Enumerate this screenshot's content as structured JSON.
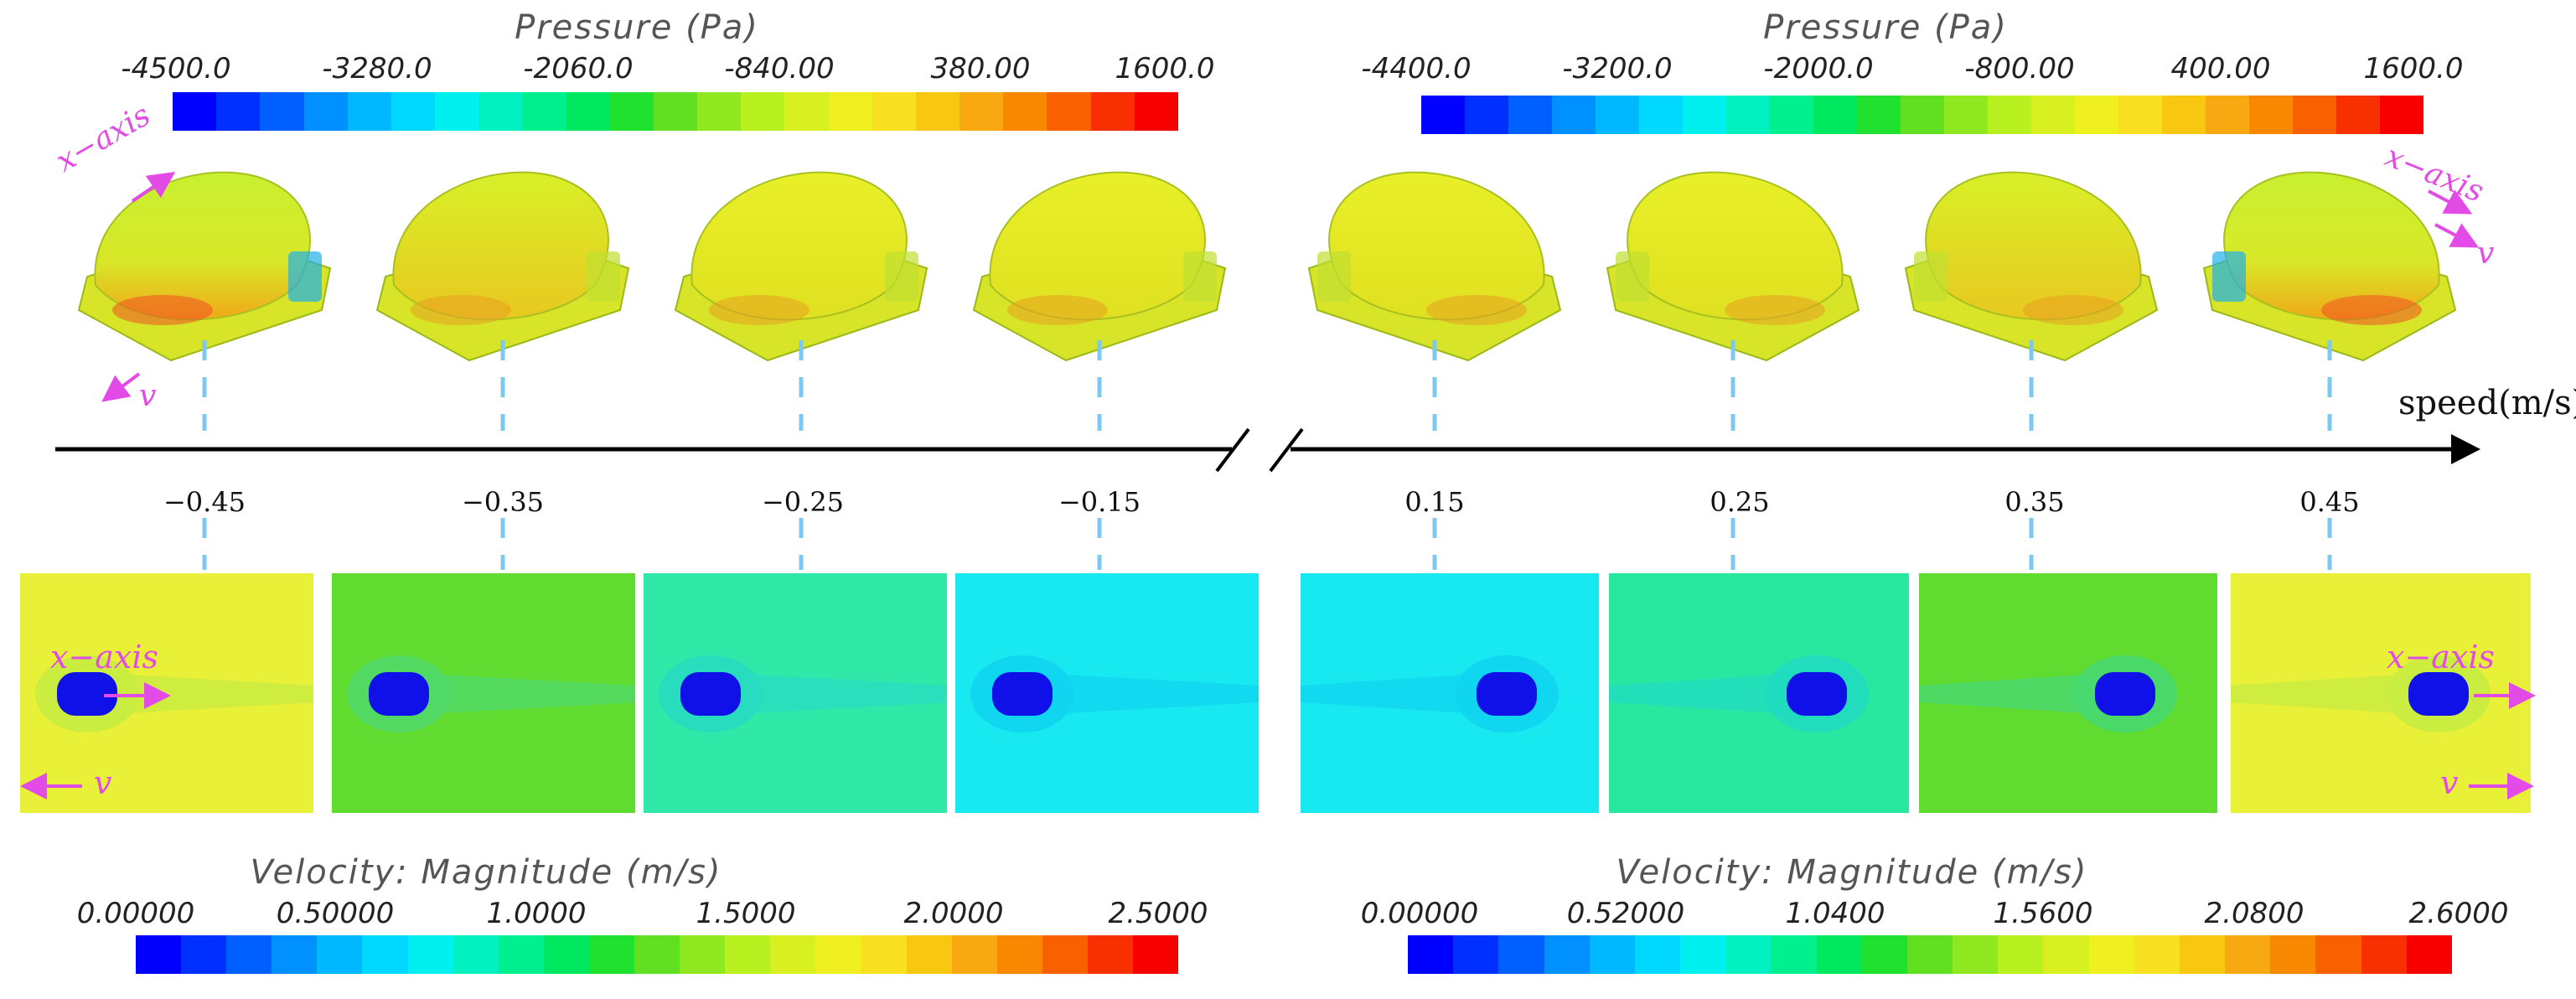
{
  "colors": {
    "ramp": [
      "#0000ff",
      "#0030ff",
      "#0060ff",
      "#0090ff",
      "#00b8ff",
      "#00d8ff",
      "#00f0f0",
      "#00f0c0",
      "#00f090",
      "#00e860",
      "#20e030",
      "#60e020",
      "#90e820",
      "#b8f020",
      "#d8f020",
      "#f0f020",
      "#f8e020",
      "#f8c810",
      "#f8a810",
      "#f88800",
      "#f86000",
      "#f83000",
      "#f80000"
    ],
    "accent": "#e24be6",
    "guide": "#7cc8f0"
  },
  "pressure_left": {
    "title": "Pressure (Pa)",
    "ticks": [
      "-4500.0",
      "-3280.0",
      "-2060.0",
      "-840.00",
      "380.00",
      "1600.0"
    ]
  },
  "pressure_right": {
    "title": "Pressure (Pa)",
    "ticks": [
      "-4400.0",
      "-3200.0",
      "-2000.0",
      "-800.00",
      "400.00",
      "1600.0"
    ]
  },
  "velocity_left": {
    "title": "Velocity: Magnitude (m/s)",
    "ticks": [
      "0.00000",
      "0.50000",
      "1.0000",
      "1.5000",
      "2.0000",
      "2.5000"
    ]
  },
  "velocity_right": {
    "title": "Velocity: Magnitude (m/s)",
    "ticks": [
      "0.00000",
      "0.52000",
      "1.0400",
      "1.5600",
      "2.0800",
      "2.6000"
    ]
  },
  "axis": {
    "label": "speed(m/s)",
    "ticks": [
      "−0.45",
      "−0.35",
      "−0.25",
      "−0.15",
      "0.15",
      "0.25",
      "0.35",
      "0.45"
    ]
  },
  "annotations": {
    "x_axis_left": "x−axis",
    "v_left": "v",
    "x_axis_right": "x−axis",
    "v_right": "v",
    "panel_x_axis_left": "x−axis",
    "panel_v_left": "v",
    "panel_x_axis_right": "x−axis",
    "panel_v_right": "v"
  },
  "panels": [
    {
      "speed": -0.45,
      "bg": "#e8f038",
      "inner": "#c8ec40"
    },
    {
      "speed": -0.35,
      "bg": "#60dc30",
      "inner": "#50d868"
    },
    {
      "speed": -0.25,
      "bg": "#30e8a8",
      "inner": "#28dcc0"
    },
    {
      "speed": -0.15,
      "bg": "#18e8f0",
      "inner": "#10d4f0"
    },
    {
      "speed": 0.15,
      "bg": "#18e8f0",
      "inner": "#10d4f0"
    },
    {
      "speed": 0.25,
      "bg": "#28e8a0",
      "inner": "#20dcc0"
    },
    {
      "speed": 0.35,
      "bg": "#60dc30",
      "inner": "#48d870"
    },
    {
      "speed": 0.45,
      "bg": "#e8f038",
      "inner": "#c8ec40"
    }
  ]
}
